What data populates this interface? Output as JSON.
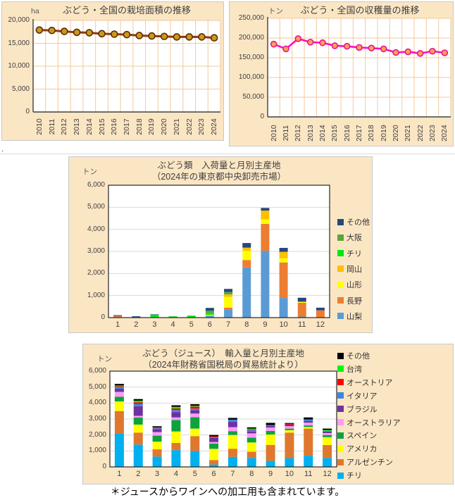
{
  "page": {
    "footnote": "＊ジュースからワインへの加工用も含まれています。",
    "stray_mark": ".",
    "panel_bg": "#FBE6C4",
    "grid_color_warm": "#F2C89E",
    "grid_color_gray": "#D9D9D9"
  },
  "chart_data": [
    {
      "type": "line",
      "title": "ぶどう・全国の栽培面積の推移",
      "unit": "ha",
      "x": [
        "2010",
        "2011",
        "2012",
        "2013",
        "2014",
        "2015",
        "2016",
        "2017",
        "2018",
        "2019",
        "2020",
        "2021",
        "2022",
        "2023",
        "2024"
      ],
      "values": [
        17900,
        17800,
        17600,
        17400,
        17300,
        17100,
        17000,
        16900,
        16700,
        16600,
        16500,
        16400,
        16400,
        16400,
        16200
      ],
      "ylim": [
        0,
        20000
      ],
      "ytick_step": 5000,
      "line_color": "#8B3A0E",
      "marker_color": "#C9991B",
      "marker_edge": "#5E2B05",
      "grid": "warm"
    },
    {
      "type": "line",
      "title": "ぶどう・全国の収穫量の推移",
      "unit": "トン",
      "x": [
        "2010",
        "2011",
        "2012",
        "2013",
        "2014",
        "2015",
        "2016",
        "2017",
        "2018",
        "2019",
        "2020",
        "2021",
        "2022",
        "2023",
        "2024"
      ],
      "values": [
        184500,
        172500,
        198300,
        189500,
        188000,
        180500,
        179200,
        176000,
        174500,
        172500,
        163400,
        165100,
        161000,
        166500,
        162500
      ],
      "ylim": [
        0,
        250000
      ],
      "ytick_step": 50000,
      "line_color": "#F911BC",
      "marker_color": "#FFA052",
      "marker_edge": "#EA128F",
      "grid": "warm"
    },
    {
      "type": "stacked-bar",
      "title_line1": "ぶどう類　入荷量と月別主産地",
      "title_line2": "（2024年の東京都中央卸売市場）",
      "unit": "トン",
      "categories": [
        "1",
        "2",
        "3",
        "4",
        "5",
        "6",
        "7",
        "8",
        "9",
        "10",
        "11",
        "12"
      ],
      "ylim": [
        0,
        6000
      ],
      "ytick_step": 1000,
      "series": [
        {
          "name": "山梨",
          "color": "#5B9BD5",
          "values": [
            20,
            0,
            0,
            0,
            0,
            90,
            370,
            2270,
            3030,
            890,
            50,
            0
          ]
        },
        {
          "name": "長野",
          "color": "#ED7D31",
          "values": [
            60,
            0,
            0,
            0,
            0,
            0,
            80,
            340,
            1220,
            1610,
            620,
            330
          ]
        },
        {
          "name": "山形",
          "color": "#FFFF00",
          "values": [
            0,
            0,
            0,
            0,
            0,
            40,
            490,
            420,
            200,
            190,
            50,
            0
          ]
        },
        {
          "name": "岡山",
          "color": "#FFC000",
          "values": [
            0,
            0,
            0,
            0,
            0,
            0,
            110,
            140,
            400,
            290,
            0,
            0
          ]
        },
        {
          "name": "チリ",
          "color": "#00E80C",
          "values": [
            0,
            0,
            130,
            50,
            90,
            90,
            0,
            0,
            0,
            0,
            0,
            0
          ]
        },
        {
          "name": "大阪",
          "color": "#5DA43C",
          "values": [
            0,
            0,
            0,
            10,
            0,
            90,
            110,
            0,
            0,
            0,
            0,
            0
          ]
        },
        {
          "name": "その他",
          "color": "#26477D",
          "values": [
            30,
            60,
            20,
            0,
            0,
            130,
            140,
            210,
            120,
            180,
            180,
            120
          ]
        }
      ],
      "grid": "gray"
    },
    {
      "type": "stacked-bar",
      "title_line1": "ぶどう（ジュース）　輸入量と月別主産地",
      "title_line2": "（2024年財務省国税局の貿易統計より）",
      "unit": "トン",
      "categories": [
        "1",
        "2",
        "3",
        "4",
        "5",
        "6",
        "7",
        "8",
        "9",
        "10",
        "11",
        "12"
      ],
      "ylim": [
        0,
        6000
      ],
      "ytick_step": 1000,
      "series": [
        {
          "name": "チリ",
          "color": "#00B0F0",
          "values": [
            2100,
            1400,
            650,
            1050,
            1000,
            150,
            630,
            560,
            380,
            550,
            700,
            560
          ]
        },
        {
          "name": "アルゼンチン",
          "color": "#E0772E",
          "values": [
            1400,
            750,
            450,
            450,
            930,
            280,
            510,
            390,
            1000,
            1600,
            1700,
            810
          ]
        },
        {
          "name": "アメリカ",
          "color": "#FFFF00",
          "values": [
            600,
            500,
            480,
            720,
            470,
            700,
            860,
            580,
            650,
            150,
            100,
            490
          ]
        },
        {
          "name": "スペイン",
          "color": "#0CA33E",
          "values": [
            300,
            450,
            380,
            720,
            720,
            330,
            240,
            300,
            220,
            100,
            100,
            140
          ]
        },
        {
          "name": "オーストラリア",
          "color": "#FF9BF7",
          "values": [
            300,
            100,
            220,
            160,
            220,
            100,
            250,
            270,
            220,
            150,
            170,
            120
          ]
        },
        {
          "name": "ブラジル",
          "color": "#7030A0",
          "values": [
            200,
            600,
            190,
            320,
            220,
            250,
            330,
            120,
            100,
            100,
            100,
            90
          ]
        },
        {
          "name": "イタリア",
          "color": "#3D85DE",
          "values": [
            100,
            150,
            70,
            140,
            90,
            50,
            140,
            80,
            50,
            0,
            100,
            50
          ]
        },
        {
          "name": "オーストリア",
          "color": "#FF0000",
          "values": [
            50,
            100,
            50,
            100,
            130,
            50,
            0,
            50,
            0,
            50,
            0,
            0
          ]
        },
        {
          "name": "台湾",
          "color": "#00F900",
          "values": [
            50,
            100,
            0,
            100,
            50,
            0,
            0,
            50,
            0,
            0,
            0,
            50
          ]
        },
        {
          "name": "その他",
          "color": "#000000",
          "values": [
            100,
            100,
            60,
            100,
            100,
            90,
            110,
            80,
            140,
            50,
            130,
            90
          ]
        }
      ],
      "grid": "gray"
    }
  ]
}
